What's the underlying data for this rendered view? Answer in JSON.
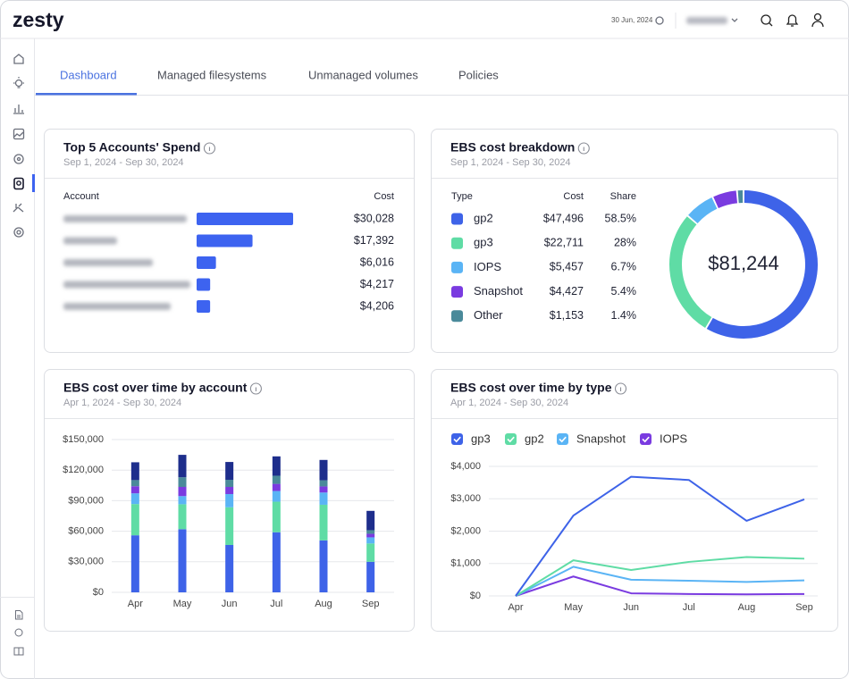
{
  "header": {
    "logo": "zesty",
    "date": "30 Jun, 2024"
  },
  "tabs": [
    "Dashboard",
    "Managed filesystems",
    "Unmanaged volumes",
    "Policies"
  ],
  "chart_data": [
    {
      "type": "bar",
      "orientation": "horizontal",
      "title": "Top 5 Accounts' Spend",
      "subtitle": "Sep 1, 2024 - Sep 30, 2024",
      "columns": [
        "Account",
        "Cost"
      ],
      "categories": [
        null,
        null,
        null,
        null,
        null
      ],
      "values": [
        30028,
        17392,
        6016,
        4217,
        4206
      ],
      "value_labels": [
        "$30,028",
        "$17,392",
        "$6,016",
        "$4,217",
        "$4,206"
      ],
      "color": "#3d63f0"
    },
    {
      "type": "pie",
      "title": "EBS cost breakdown",
      "subtitle": "Sep 1, 2024 - Sep 30, 2024",
      "columns": [
        "Type",
        "Cost",
        "Share"
      ],
      "categories": [
        "gp2",
        "gp3",
        "IOPS",
        "Snapshot",
        "Other"
      ],
      "values": [
        47496,
        22711,
        5457,
        4427,
        1153
      ],
      "value_labels": [
        "$47,496",
        "$22,711",
        "$5,457",
        "$4,427",
        "$1,153"
      ],
      "shares": [
        58.5,
        28,
        6.7,
        5.4,
        1.4
      ],
      "share_labels": [
        "58.5%",
        "28%",
        "6.7%",
        "5.4%",
        "1.4%"
      ],
      "colors": [
        "#3e63e8",
        "#5fdca5",
        "#5ab4f5",
        "#7a3be0",
        "#4a8a9a"
      ],
      "total": {
        "value": 81244,
        "label": "$81,244"
      }
    },
    {
      "type": "bar",
      "stacked": true,
      "title": "EBS cost over time by account",
      "subtitle": "Apr 1, 2024 - Sep 30, 2024",
      "categories": [
        "Apr",
        "May",
        "Jun",
        "Jul",
        "Aug",
        "Sep"
      ],
      "ylim": [
        0,
        150000
      ],
      "yticks": [
        {
          "value": 0,
          "label": "$0"
        },
        {
          "value": 30000,
          "label": "$30,000"
        },
        {
          "value": 60000,
          "label": "$60,000"
        },
        {
          "value": 90000,
          "label": "$90,000"
        },
        {
          "value": 120000,
          "label": "$120,000"
        },
        {
          "value": 150000,
          "label": "$150,000"
        }
      ],
      "grid": true,
      "series": [
        {
          "name": null,
          "color": "#3e63e8",
          "values": [
            56000,
            62000,
            46500,
            59000,
            51000,
            30000
          ]
        },
        {
          "name": null,
          "color": "#5fdca5",
          "values": [
            30700,
            24500,
            37000,
            30000,
            35000,
            18000
          ]
        },
        {
          "name": null,
          "color": "#5ab4f5",
          "values": [
            10500,
            8000,
            13000,
            10500,
            12000,
            6000
          ]
        },
        {
          "name": null,
          "color": "#7a3be0",
          "values": [
            7000,
            9000,
            7000,
            7000,
            6000,
            3500
          ]
        },
        {
          "name": null,
          "color": "#4a8a9a",
          "values": [
            6000,
            9500,
            7000,
            8000,
            6000,
            3500
          ]
        },
        {
          "name": null,
          "color": "#1e2e8c",
          "values": [
            17500,
            22000,
            17500,
            19000,
            20000,
            19000
          ]
        }
      ]
    },
    {
      "type": "line",
      "title": "EBS cost over time by type",
      "subtitle": "Apr 1, 2024 - Sep 30, 2024",
      "categories": [
        "Apr",
        "May",
        "Jun",
        "Jul",
        "Aug",
        "Sep"
      ],
      "ylim": [
        0,
        4000
      ],
      "yticks": [
        {
          "value": 0,
          "label": "$0"
        },
        {
          "value": 1000,
          "label": "$1,000"
        },
        {
          "value": 2000,
          "label": "$2,000"
        },
        {
          "value": 3000,
          "label": "$3,000"
        },
        {
          "value": 4000,
          "label": "$4,000"
        }
      ],
      "grid": true,
      "series": [
        {
          "name": "gp3",
          "color": "#3e63e8",
          "values": [
            0,
            2480,
            3680,
            3580,
            2320,
            2980
          ]
        },
        {
          "name": "gp2",
          "color": "#5fdca5",
          "values": [
            0,
            1100,
            800,
            1050,
            1200,
            1150
          ]
        },
        {
          "name": "Snapshot",
          "color": "#5ab4f5",
          "values": [
            0,
            900,
            500,
            470,
            430,
            480
          ]
        },
        {
          "name": "IOPS",
          "color": "#7a3be0",
          "values": [
            0,
            600,
            80,
            60,
            50,
            60
          ]
        }
      ]
    }
  ]
}
